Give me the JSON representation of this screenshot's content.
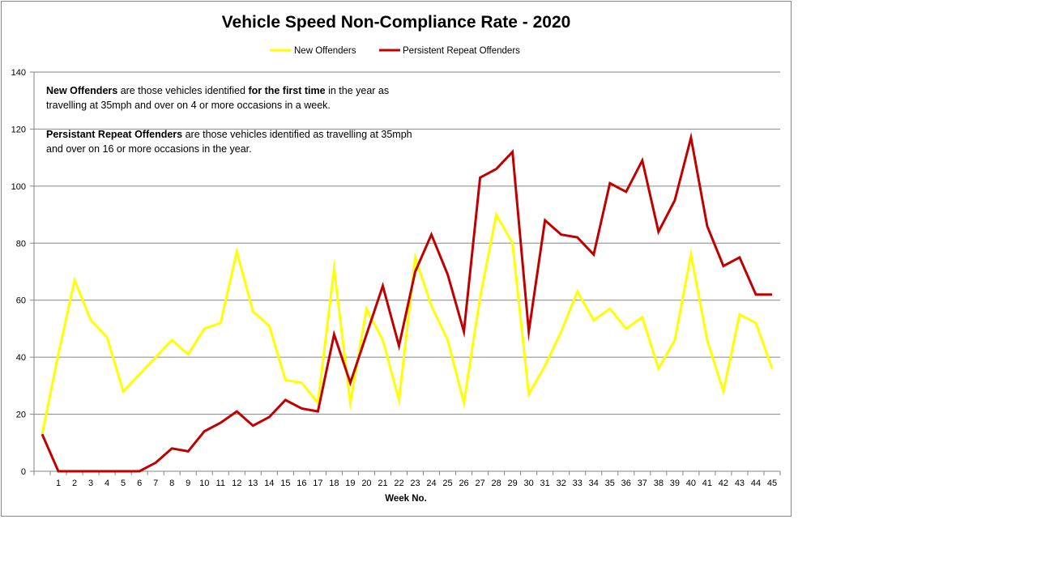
{
  "chart_data": {
    "type": "line",
    "title": "Vehicle Speed Non-Compliance Rate - 2020",
    "xlabel": "Week No.",
    "ylabel": "",
    "ylim": [
      0,
      140
    ],
    "yticks": [
      0,
      20,
      40,
      60,
      80,
      100,
      120,
      140
    ],
    "grid": true,
    "legend_position": "top-center",
    "categories": [
      "",
      "1",
      "2",
      "3",
      "4",
      "5",
      "6",
      "7",
      "8",
      "9",
      "10",
      "11",
      "12",
      "13",
      "14",
      "15",
      "16",
      "17",
      "18",
      "19",
      "20",
      "21",
      "22",
      "23",
      "24",
      "25",
      "26",
      "27",
      "28",
      "29",
      "30",
      "31",
      "32",
      "33",
      "34",
      "35",
      "36",
      "37",
      "38",
      "39",
      "40",
      "41",
      "42",
      "43",
      "44",
      "45"
    ],
    "series": [
      {
        "name": "New Offenders",
        "color": "#FFFF00",
        "values": [
          13,
          41,
          67,
          53,
          47,
          28,
          34,
          40,
          46,
          41,
          50,
          52,
          77,
          56,
          51,
          32,
          31,
          24,
          71,
          24,
          57,
          46,
          25,
          75,
          58,
          46,
          24,
          61,
          90,
          80,
          27,
          37,
          49,
          63,
          53,
          57,
          50,
          54,
          36,
          46,
          76,
          46,
          28,
          55,
          52,
          36
        ]
      },
      {
        "name": "Persistent Repeat Offenders",
        "color": "#C00000",
        "values": [
          13,
          0,
          0,
          0,
          0,
          0,
          0,
          3,
          8,
          7,
          14,
          17,
          21,
          16,
          19,
          25,
          22,
          21,
          48,
          31,
          48,
          65,
          44,
          70,
          83,
          69,
          49,
          103,
          106,
          112,
          49,
          88,
          83,
          82,
          76,
          101,
          98,
          109,
          84,
          95,
          117,
          86,
          72,
          75,
          62,
          62
        ]
      }
    ],
    "annotations": [
      {
        "parts": [
          {
            "text": "New Offenders",
            "bold": true
          },
          {
            "text": " are those vehicles identified ",
            "bold": false
          },
          {
            "text": "for the first time",
            "bold": true
          },
          {
            "text": " in the year as travelling at 35mph and over on 4 or more occasions in a week.",
            "bold": false
          }
        ]
      },
      {
        "parts": [
          {
            "text": "Persistant Repeat Offenders",
            "bold": true
          },
          {
            "text": " are those vehicles identified as travelling at 35mph and over on 16 or more occasions in the year.",
            "bold": false
          }
        ]
      }
    ],
    "gridline_color": "#868686"
  }
}
